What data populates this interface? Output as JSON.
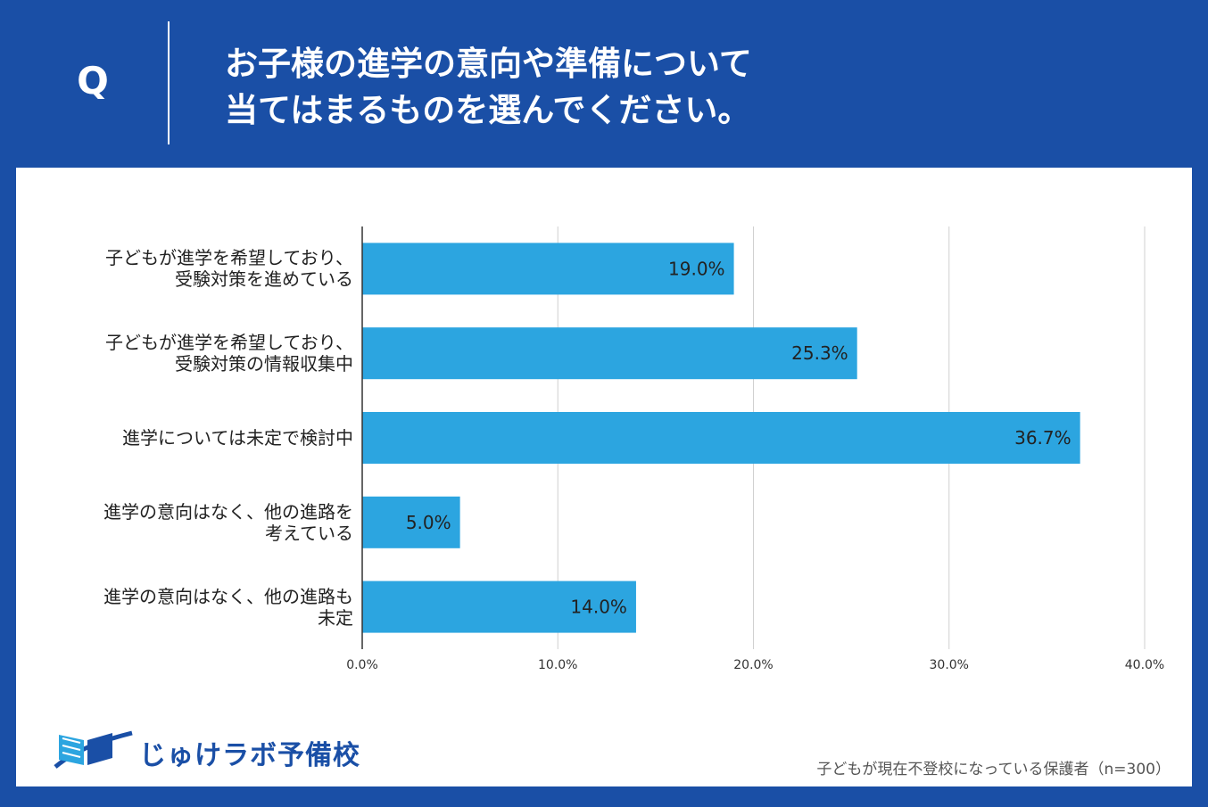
{
  "header": {
    "q_label": "Q",
    "question_line1": "お子様の進学の意向や準備について",
    "question_line2": "当てはまるものを選んでください。"
  },
  "colors": {
    "background": "#1a4fa6",
    "bar": "#2ca5e0",
    "panel": "#ffffff"
  },
  "chart_data": {
    "type": "bar",
    "orientation": "horizontal",
    "categories": [
      [
        "子どもが進学を希望しており、",
        "受験対策を進めている"
      ],
      [
        "子どもが進学を希望しており、",
        "受験対策の情報収集中"
      ],
      [
        "進学については未定で検討中"
      ],
      [
        "進学の意向はなく、他の進路を",
        "考えている"
      ],
      [
        "進学の意向はなく、他の進路も",
        "未定"
      ]
    ],
    "values": [
      19.0,
      25.3,
      36.7,
      5.0,
      14.0
    ],
    "data_labels": [
      "19.0%",
      "25.3%",
      "36.7%",
      "5.0%",
      "14.0%"
    ],
    "xlim": [
      0,
      40
    ],
    "xticks": [
      0,
      10,
      20,
      30,
      40
    ],
    "xtick_labels": [
      "0.0%",
      "10.0%",
      "20.0%",
      "30.0%",
      "40.0%"
    ],
    "grid": true,
    "title": "",
    "xlabel": "",
    "ylabel": ""
  },
  "footer": {
    "logo_text": "じゅけラボ予備校",
    "logo_icon": "open-book-swoosh-icon",
    "note": "子どもが現在不登校になっている保護者（n=300）"
  }
}
